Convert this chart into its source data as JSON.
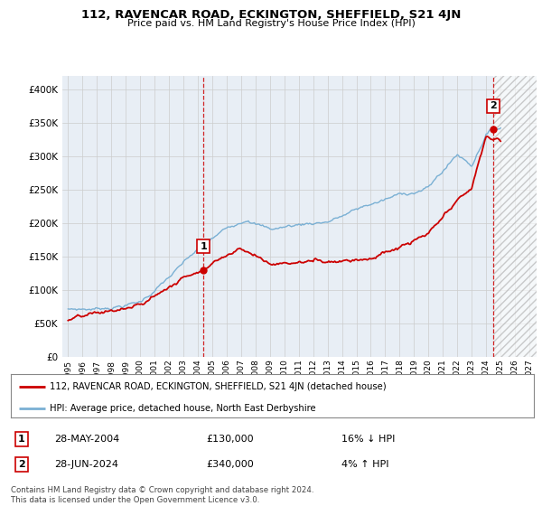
{
  "title": "112, RAVENCAR ROAD, ECKINGTON, SHEFFIELD, S21 4JN",
  "subtitle": "Price paid vs. HM Land Registry's House Price Index (HPI)",
  "legend_label_red": "112, RAVENCAR ROAD, ECKINGTON, SHEFFIELD, S21 4JN (detached house)",
  "legend_label_blue": "HPI: Average price, detached house, North East Derbyshire",
  "annotation1_date": "28-MAY-2004",
  "annotation1_price": "£130,000",
  "annotation1_pct": "16% ↓ HPI",
  "annotation2_date": "28-JUN-2024",
  "annotation2_price": "£340,000",
  "annotation2_pct": "4% ↑ HPI",
  "footer": "Contains HM Land Registry data © Crown copyright and database right 2024.\nThis data is licensed under the Open Government Licence v3.0.",
  "red_color": "#cc0000",
  "blue_color": "#7ab0d4",
  "grid_color": "#cccccc",
  "background_color": "#ffffff",
  "plot_bg_color": "#e8eef5",
  "hatch_color": "#d0d8e0",
  "ylim": [
    0,
    420000
  ],
  "yticks": [
    0,
    50000,
    100000,
    150000,
    200000,
    250000,
    300000,
    350000,
    400000
  ],
  "sale1_x": 2004.38,
  "sale1_y": 130000,
  "sale2_x": 2024.49,
  "sale2_y": 340000,
  "hatch_start": 2024.5,
  "hatch_end": 2027.5,
  "xlim_start": 1994.6,
  "xlim_end": 2027.5
}
